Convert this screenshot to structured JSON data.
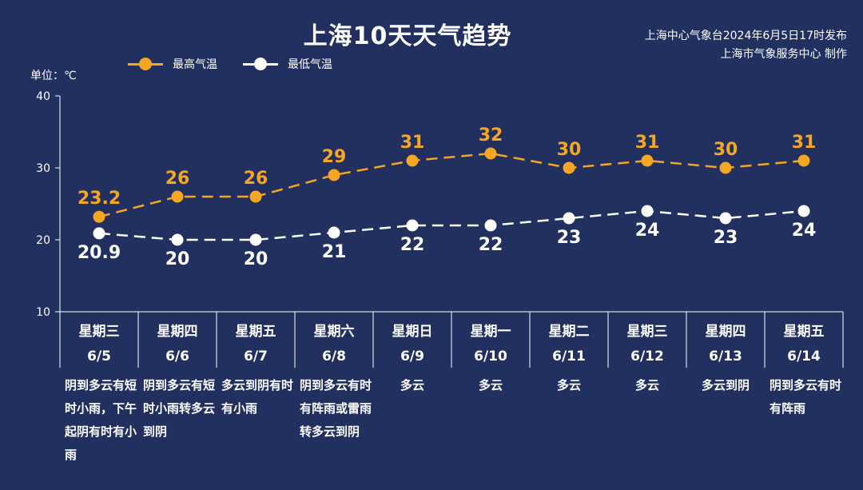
{
  "title": "上海10天天气趋势",
  "source": {
    "line1": "上海中心气象台2024年6月5日17时发布",
    "line2": "上海市气象服务中心 制作"
  },
  "legend": {
    "high": "最高气温",
    "low": "最低气温"
  },
  "unit_label": "单位：℃",
  "colors": {
    "background": "#22305f",
    "high": "#f5a623",
    "low": "#ffffff",
    "axis": "#ffffff"
  },
  "days": [
    {
      "weekday": "星期三",
      "date": "6/5",
      "desc": "阴到多云有短时小雨，下午起阴有时有小雨"
    },
    {
      "weekday": "星期四",
      "date": "6/6",
      "desc": "阴到多云有短时小雨转多云到阴"
    },
    {
      "weekday": "星期五",
      "date": "6/7",
      "desc": "多云到阴有时有小雨"
    },
    {
      "weekday": "星期六",
      "date": "6/8",
      "desc": "阴到多云有时有阵雨或雷雨转多云到阴"
    },
    {
      "weekday": "星期日",
      "date": "6/9",
      "desc": "多云"
    },
    {
      "weekday": "星期一",
      "date": "6/10",
      "desc": "多云"
    },
    {
      "weekday": "星期二",
      "date": "6/11",
      "desc": "多云"
    },
    {
      "weekday": "星期三",
      "date": "6/12",
      "desc": "多云"
    },
    {
      "weekday": "星期四",
      "date": "6/13",
      "desc": "多云到阴"
    },
    {
      "weekday": "星期五",
      "date": "6/14",
      "desc": "阴到多云有时有阵雨"
    }
  ],
  "chart_data": {
    "type": "line",
    "title": "上海10天天气趋势",
    "ylabel": "单位：℃",
    "ylim": [
      10,
      40
    ],
    "yticks": [
      10,
      20,
      30,
      40
    ],
    "categories": [
      "6/5",
      "6/6",
      "6/7",
      "6/8",
      "6/9",
      "6/10",
      "6/11",
      "6/12",
      "6/13",
      "6/14"
    ],
    "series": [
      {
        "name": "最高气温",
        "values": [
          23.2,
          26,
          26,
          29,
          31,
          32,
          30,
          31,
          30,
          31
        ],
        "labels": [
          "23.2",
          "26",
          "26",
          "29",
          "31",
          "32",
          "30",
          "31",
          "30",
          "31"
        ]
      },
      {
        "name": "最低气温",
        "values": [
          20.9,
          20,
          20,
          21,
          22,
          22,
          23,
          24,
          23,
          24
        ],
        "labels": [
          "20.9",
          "20",
          "20",
          "21",
          "22",
          "22",
          "23",
          "24",
          "23",
          "24"
        ]
      }
    ],
    "grid": false,
    "legend": "top-left"
  }
}
